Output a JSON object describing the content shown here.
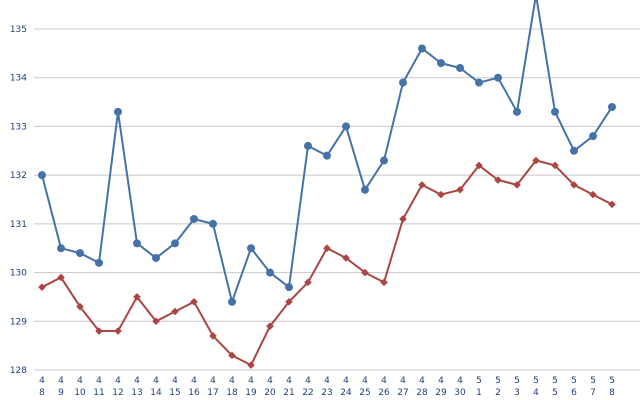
{
  "chart_data": {
    "type": "line",
    "title": "",
    "xlabel": "",
    "ylabel": "",
    "ylim": [
      128,
      135.5
    ],
    "yticks": [
      128,
      129,
      130,
      131,
      132,
      133,
      134,
      135
    ],
    "grid": "horizontal",
    "legend": "none",
    "categories": [
      {
        "top": "4",
        "bottom": "8"
      },
      {
        "top": "4",
        "bottom": "9"
      },
      {
        "top": "4",
        "bottom": "10"
      },
      {
        "top": "4",
        "bottom": "11"
      },
      {
        "top": "4",
        "bottom": "12"
      },
      {
        "top": "4",
        "bottom": "13"
      },
      {
        "top": "4",
        "bottom": "14"
      },
      {
        "top": "4",
        "bottom": "15"
      },
      {
        "top": "4",
        "bottom": "16"
      },
      {
        "top": "4",
        "bottom": "17"
      },
      {
        "top": "4",
        "bottom": "18"
      },
      {
        "top": "4",
        "bottom": "19"
      },
      {
        "top": "4",
        "bottom": "20"
      },
      {
        "top": "4",
        "bottom": "21"
      },
      {
        "top": "4",
        "bottom": "22"
      },
      {
        "top": "4",
        "bottom": "23"
      },
      {
        "top": "4",
        "bottom": "24"
      },
      {
        "top": "4",
        "bottom": "25"
      },
      {
        "top": "4",
        "bottom": "26"
      },
      {
        "top": "4",
        "bottom": "27"
      },
      {
        "top": "4",
        "bottom": "28"
      },
      {
        "top": "4",
        "bottom": "29"
      },
      {
        "top": "4",
        "bottom": "30"
      },
      {
        "top": "5",
        "bottom": "1"
      },
      {
        "top": "5",
        "bottom": "2"
      },
      {
        "top": "5",
        "bottom": "3"
      },
      {
        "top": "5",
        "bottom": "4"
      },
      {
        "top": "5",
        "bottom": "5"
      },
      {
        "top": "5",
        "bottom": "6"
      },
      {
        "top": "5",
        "bottom": "7"
      },
      {
        "top": "5",
        "bottom": "8"
      }
    ],
    "series": [
      {
        "color": "#4572a7",
        "marker": "circle",
        "values": [
          132.0,
          130.5,
          130.4,
          130.2,
          133.3,
          130.6,
          130.3,
          130.6,
          131.1,
          131.0,
          129.4,
          130.5,
          130.0,
          129.7,
          132.6,
          132.4,
          133.0,
          131.7,
          132.3,
          133.9,
          134.6,
          134.3,
          134.2,
          133.9,
          134.0,
          133.3,
          135.7,
          133.3,
          132.5,
          132.8,
          133.4
        ]
      },
      {
        "color": "#aa4643",
        "marker": "diamond",
        "values": [
          129.7,
          129.9,
          129.3,
          128.8,
          128.8,
          129.5,
          129.0,
          129.2,
          129.4,
          128.7,
          128.3,
          128.1,
          128.9,
          129.4,
          129.8,
          130.5,
          130.3,
          130.0,
          129.8,
          131.1,
          131.8,
          131.6,
          131.7,
          132.2,
          131.9,
          131.8,
          132.3,
          132.2,
          131.8,
          131.6,
          131.4
        ]
      }
    ]
  }
}
